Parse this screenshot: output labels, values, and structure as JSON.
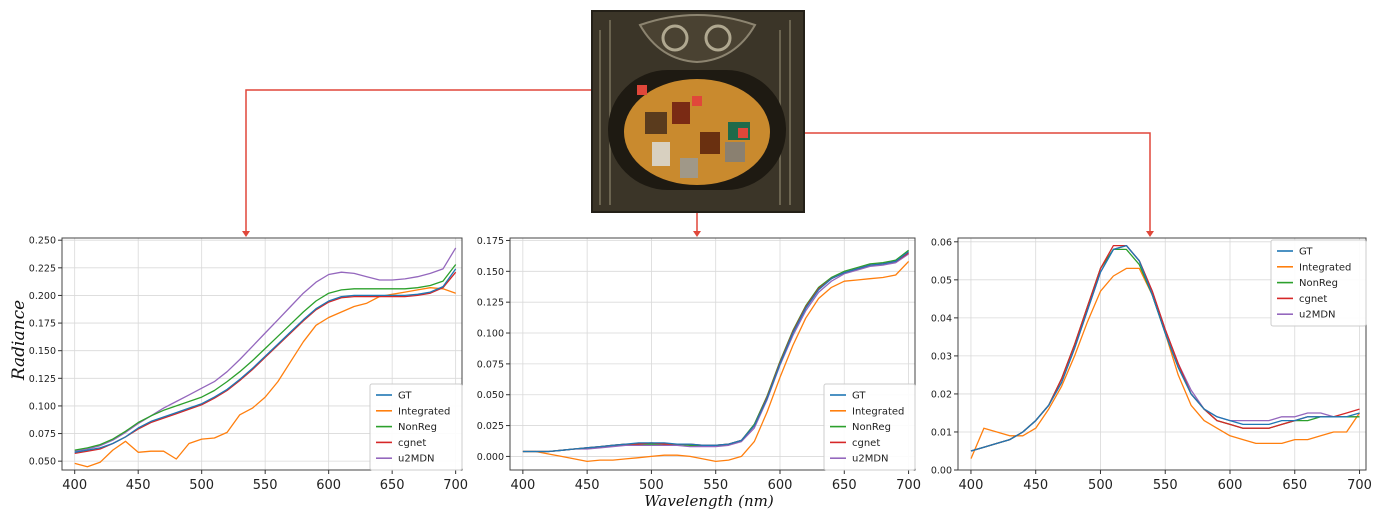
{
  "figure": {
    "shared_ylabel": "Radiance",
    "shared_xlabel": "Wavelength (nm)",
    "connector_color": "#e0473a"
  },
  "scene_image": {
    "description_icon": "hyperspectral-scene-thumbnail",
    "colors": {
      "background": "#3b3528",
      "plate": "#c98a2e",
      "plate_border": "#1e1a12"
    }
  },
  "series_styles": [
    {
      "name": "GT",
      "color": "#1f77b4"
    },
    {
      "name": "Integrated",
      "color": "#ff7f0e"
    },
    {
      "name": "NonReg",
      "color": "#2ca02c"
    },
    {
      "name": "cgnet",
      "color": "#d62728"
    },
    {
      "name": "u2MDN",
      "color": "#9467bd"
    }
  ],
  "chart_data": [
    {
      "type": "line",
      "xlabel": "",
      "ylabel": "Radiance",
      "xlim": [
        390,
        705
      ],
      "ylim": [
        0.042,
        0.252
      ],
      "xticks": [
        400,
        450,
        500,
        550,
        600,
        650,
        700
      ],
      "yticks": [
        0.05,
        0.075,
        0.1,
        0.125,
        0.15,
        0.175,
        0.2,
        0.225,
        0.25
      ],
      "ytick_labels": [
        "0.050",
        "0.075",
        "0.100",
        "0.125",
        "0.150",
        "0.175",
        "0.200",
        "0.225",
        "0.250"
      ],
      "grid": true,
      "legend_position": "bottom-right",
      "x": [
        400,
        410,
        420,
        430,
        440,
        450,
        460,
        470,
        480,
        490,
        500,
        510,
        520,
        530,
        540,
        550,
        560,
        570,
        580,
        590,
        600,
        610,
        620,
        630,
        640,
        650,
        660,
        670,
        680,
        690,
        700
      ],
      "series": [
        {
          "name": "GT",
          "values": [
            0.058,
            0.06,
            0.062,
            0.066,
            0.072,
            0.08,
            0.086,
            0.09,
            0.094,
            0.098,
            0.102,
            0.108,
            0.115,
            0.124,
            0.134,
            0.145,
            0.156,
            0.167,
            0.178,
            0.188,
            0.195,
            0.199,
            0.2,
            0.2,
            0.2,
            0.2,
            0.2,
            0.201,
            0.203,
            0.208,
            0.224
          ]
        },
        {
          "name": "Integrated",
          "values": [
            0.048,
            0.045,
            0.049,
            0.06,
            0.068,
            0.058,
            0.059,
            0.059,
            0.052,
            0.066,
            0.07,
            0.071,
            0.076,
            0.092,
            0.098,
            0.108,
            0.122,
            0.14,
            0.158,
            0.173,
            0.18,
            0.185,
            0.19,
            0.193,
            0.199,
            0.201,
            0.203,
            0.205,
            0.207,
            0.206,
            0.202
          ]
        },
        {
          "name": "NonReg",
          "values": [
            0.06,
            0.062,
            0.065,
            0.07,
            0.077,
            0.085,
            0.091,
            0.096,
            0.1,
            0.104,
            0.108,
            0.114,
            0.122,
            0.131,
            0.141,
            0.152,
            0.163,
            0.174,
            0.185,
            0.195,
            0.202,
            0.205,
            0.206,
            0.206,
            0.206,
            0.206,
            0.206,
            0.207,
            0.209,
            0.213,
            0.228
          ]
        },
        {
          "name": "cgnet",
          "values": [
            0.057,
            0.059,
            0.061,
            0.066,
            0.072,
            0.079,
            0.085,
            0.089,
            0.093,
            0.097,
            0.101,
            0.107,
            0.114,
            0.123,
            0.133,
            0.144,
            0.155,
            0.166,
            0.177,
            0.187,
            0.194,
            0.198,
            0.199,
            0.199,
            0.199,
            0.199,
            0.199,
            0.2,
            0.202,
            0.207,
            0.221
          ]
        },
        {
          "name": "u2MDN",
          "values": [
            0.059,
            0.061,
            0.064,
            0.069,
            0.076,
            0.084,
            0.091,
            0.098,
            0.104,
            0.11,
            0.116,
            0.122,
            0.131,
            0.142,
            0.154,
            0.166,
            0.178,
            0.19,
            0.202,
            0.212,
            0.219,
            0.221,
            0.22,
            0.217,
            0.214,
            0.214,
            0.215,
            0.217,
            0.22,
            0.224,
            0.243
          ]
        }
      ]
    },
    {
      "type": "line",
      "xlabel": "Wavelength (nm)",
      "ylabel": "",
      "xlim": [
        390,
        705
      ],
      "ylim": [
        -0.011,
        0.177
      ],
      "xticks": [
        400,
        450,
        500,
        550,
        600,
        650,
        700
      ],
      "yticks": [
        0.0,
        0.025,
        0.05,
        0.075,
        0.1,
        0.125,
        0.15,
        0.175
      ],
      "ytick_labels": [
        "0.000",
        "0.025",
        "0.050",
        "0.075",
        "0.100",
        "0.125",
        "0.150",
        "0.175"
      ],
      "grid": true,
      "legend_position": "bottom-right",
      "x": [
        400,
        410,
        420,
        430,
        440,
        450,
        460,
        470,
        480,
        490,
        500,
        510,
        520,
        530,
        540,
        550,
        560,
        570,
        580,
        590,
        600,
        610,
        620,
        630,
        640,
        650,
        660,
        670,
        680,
        690,
        700
      ],
      "series": [
        {
          "name": "GT",
          "values": [
            0.004,
            0.004,
            0.004,
            0.005,
            0.006,
            0.007,
            0.008,
            0.009,
            0.01,
            0.011,
            0.011,
            0.011,
            0.01,
            0.01,
            0.009,
            0.009,
            0.01,
            0.013,
            0.025,
            0.047,
            0.075,
            0.1,
            0.12,
            0.135,
            0.144,
            0.149,
            0.152,
            0.155,
            0.156,
            0.158,
            0.166
          ]
        },
        {
          "name": "Integrated",
          "values": [
            0.004,
            0.004,
            0.002,
            0.0,
            -0.002,
            -0.004,
            -0.003,
            -0.003,
            -0.002,
            -0.001,
            0.0,
            0.001,
            0.001,
            0.0,
            -0.002,
            -0.004,
            -0.003,
            0.0,
            0.012,
            0.036,
            0.064,
            0.09,
            0.112,
            0.128,
            0.137,
            0.142,
            0.143,
            0.144,
            0.145,
            0.147,
            0.158
          ]
        },
        {
          "name": "NonReg",
          "values": [
            0.004,
            0.004,
            0.004,
            0.005,
            0.006,
            0.007,
            0.008,
            0.009,
            0.01,
            0.01,
            0.01,
            0.01,
            0.01,
            0.009,
            0.009,
            0.009,
            0.01,
            0.013,
            0.026,
            0.049,
            0.077,
            0.102,
            0.122,
            0.137,
            0.145,
            0.15,
            0.153,
            0.156,
            0.157,
            0.159,
            0.167
          ]
        },
        {
          "name": "cgnet",
          "values": [
            0.004,
            0.004,
            0.004,
            0.005,
            0.006,
            0.007,
            0.008,
            0.009,
            0.01,
            0.01,
            0.011,
            0.01,
            0.01,
            0.01,
            0.009,
            0.009,
            0.01,
            0.013,
            0.025,
            0.048,
            0.076,
            0.101,
            0.121,
            0.136,
            0.144,
            0.149,
            0.152,
            0.155,
            0.156,
            0.158,
            0.165
          ]
        },
        {
          "name": "u2MDN",
          "values": [
            0.004,
            0.004,
            0.004,
            0.005,
            0.006,
            0.006,
            0.007,
            0.008,
            0.009,
            0.009,
            0.009,
            0.009,
            0.009,
            0.008,
            0.008,
            0.008,
            0.009,
            0.012,
            0.023,
            0.046,
            0.074,
            0.098,
            0.118,
            0.133,
            0.142,
            0.148,
            0.151,
            0.154,
            0.155,
            0.157,
            0.164
          ]
        }
      ]
    },
    {
      "type": "line",
      "xlabel": "",
      "ylabel": "",
      "xlim": [
        390,
        705
      ],
      "ylim": [
        0.0,
        0.061
      ],
      "xticks": [
        400,
        450,
        500,
        550,
        600,
        650,
        700
      ],
      "yticks": [
        0.0,
        0.01,
        0.02,
        0.03,
        0.04,
        0.05,
        0.06
      ],
      "ytick_labels": [
        "0.00",
        "0.01",
        "0.02",
        "0.03",
        "0.04",
        "0.05",
        "0.06"
      ],
      "grid": true,
      "legend_position": "top-right",
      "x": [
        400,
        410,
        420,
        430,
        440,
        450,
        460,
        470,
        480,
        490,
        500,
        510,
        520,
        530,
        540,
        550,
        560,
        570,
        580,
        590,
        600,
        610,
        620,
        630,
        640,
        650,
        660,
        670,
        680,
        690,
        700
      ],
      "series": [
        {
          "name": "GT",
          "values": [
            0.005,
            0.006,
            0.007,
            0.008,
            0.01,
            0.013,
            0.017,
            0.023,
            0.032,
            0.042,
            0.052,
            0.058,
            0.059,
            0.055,
            0.046,
            0.036,
            0.027,
            0.02,
            0.016,
            0.014,
            0.013,
            0.012,
            0.012,
            0.012,
            0.013,
            0.013,
            0.014,
            0.014,
            0.014,
            0.014,
            0.015
          ]
        },
        {
          "name": "Integrated",
          "values": [
            0.003,
            0.011,
            0.01,
            0.009,
            0.009,
            0.011,
            0.016,
            0.022,
            0.03,
            0.039,
            0.047,
            0.051,
            0.053,
            0.053,
            0.046,
            0.036,
            0.025,
            0.017,
            0.013,
            0.011,
            0.009,
            0.008,
            0.007,
            0.007,
            0.007,
            0.008,
            0.008,
            0.009,
            0.01,
            0.01,
            0.015
          ]
        },
        {
          "name": "NonReg",
          "values": [
            0.005,
            0.006,
            0.007,
            0.008,
            0.01,
            0.013,
            0.017,
            0.024,
            0.033,
            0.043,
            0.053,
            0.058,
            0.058,
            0.054,
            0.046,
            0.036,
            0.027,
            0.02,
            0.016,
            0.013,
            0.012,
            0.011,
            0.011,
            0.011,
            0.012,
            0.013,
            0.013,
            0.014,
            0.014,
            0.014,
            0.014
          ]
        },
        {
          "name": "cgnet",
          "values": [
            0.005,
            0.006,
            0.007,
            0.008,
            0.01,
            0.013,
            0.017,
            0.024,
            0.033,
            0.043,
            0.053,
            0.059,
            0.059,
            0.055,
            0.047,
            0.037,
            0.028,
            0.02,
            0.016,
            0.013,
            0.012,
            0.011,
            0.011,
            0.011,
            0.012,
            0.013,
            0.014,
            0.014,
            0.014,
            0.015,
            0.016
          ]
        },
        {
          "name": "u2MDN",
          "values": [
            0.005,
            0.006,
            0.007,
            0.008,
            0.01,
            0.013,
            0.017,
            0.023,
            0.032,
            0.042,
            0.052,
            0.058,
            0.059,
            0.055,
            0.047,
            0.037,
            0.028,
            0.021,
            0.016,
            0.014,
            0.013,
            0.013,
            0.013,
            0.013,
            0.014,
            0.014,
            0.015,
            0.015,
            0.014,
            0.014,
            0.014
          ]
        }
      ]
    }
  ]
}
